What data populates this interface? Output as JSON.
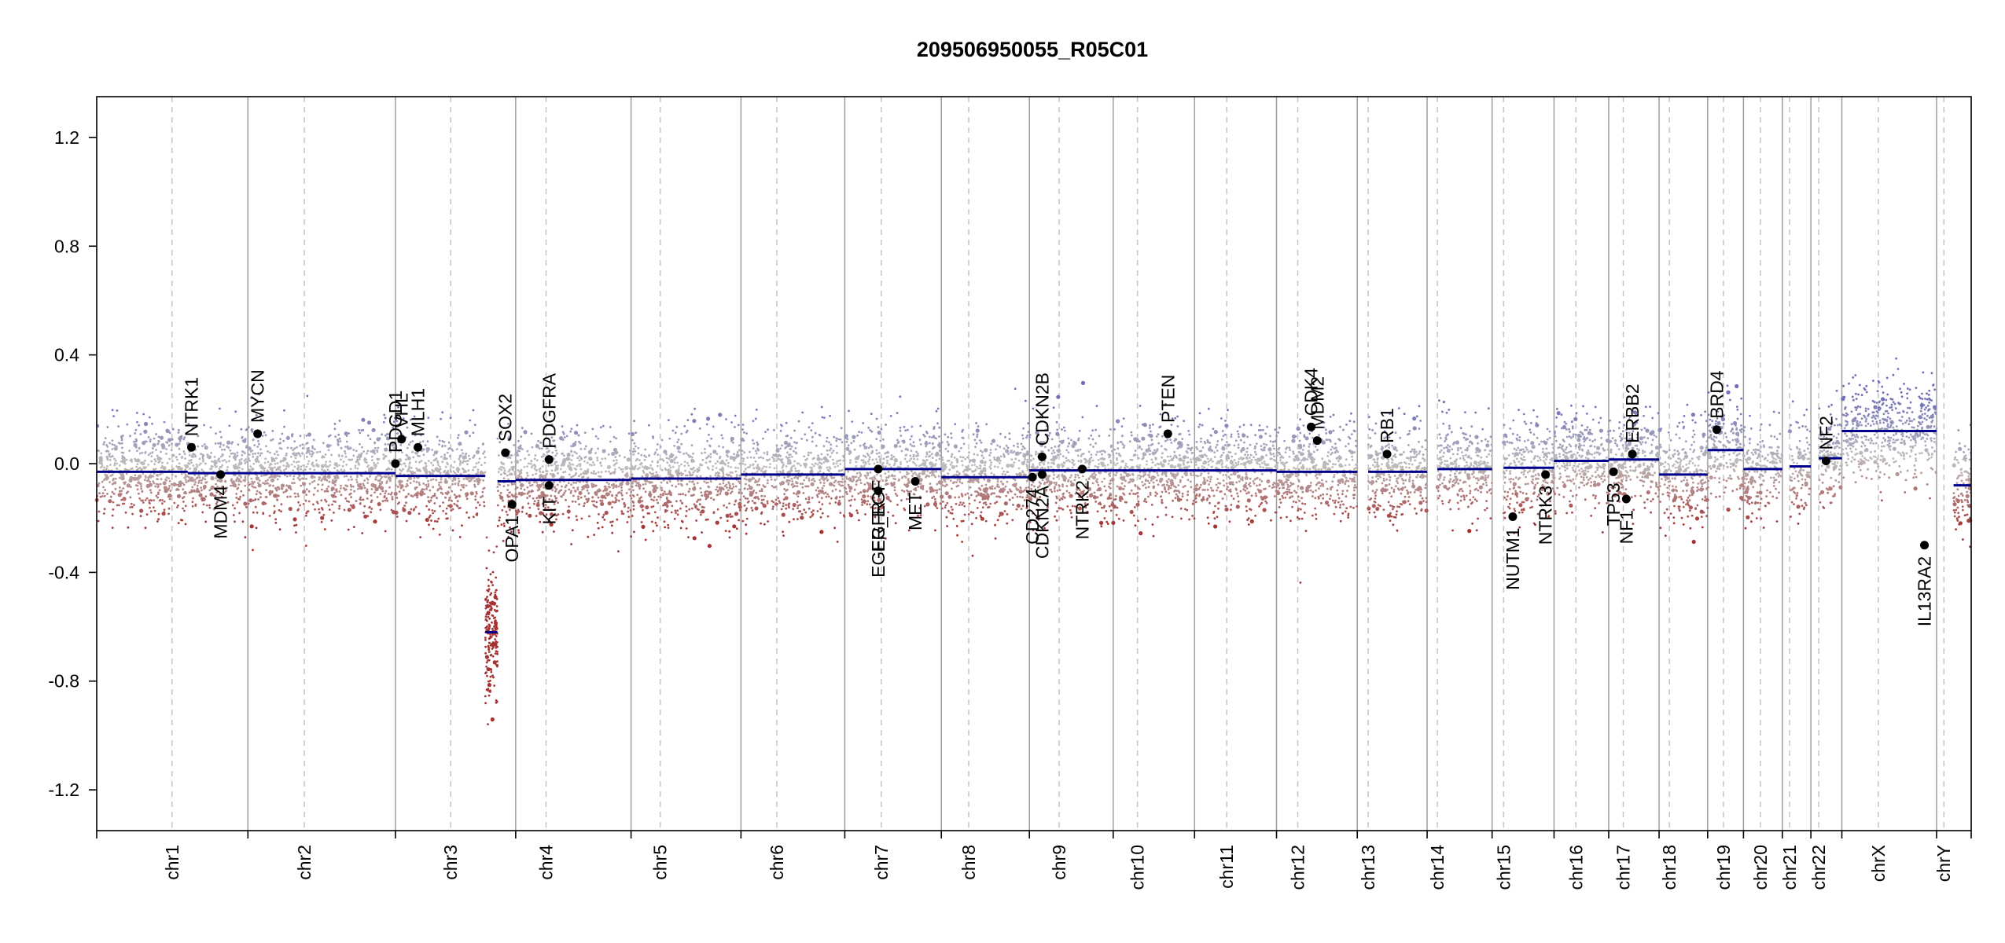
{
  "chart_data": {
    "type": "scatter",
    "title": "209506950055_R05C01",
    "ylim": [
      -1.35,
      1.35
    ],
    "yticks": [
      -1.2,
      -0.8,
      -0.4,
      0.0,
      0.4,
      0.8,
      1.2
    ],
    "ytick_labels": [
      "-1.2",
      "-0.8",
      "-0.4",
      "0.0",
      "0.4",
      "0.8",
      "1.2"
    ],
    "chromosomes": [
      {
        "name": "chr1",
        "start": 0,
        "end": 249,
        "centromere": 124,
        "segments": [
          {
            "from": 0,
            "to": 150,
            "value": -0.03
          },
          {
            "from": 150,
            "to": 249,
            "value": -0.035
          }
        ]
      },
      {
        "name": "chr2",
        "start": 249,
        "end": 492,
        "centromere": 342,
        "segments": [
          {
            "from": 249,
            "to": 492,
            "value": -0.035
          }
        ]
      },
      {
        "name": "chr3",
        "start": 492,
        "end": 690,
        "centromere": 583,
        "segments": [
          {
            "from": 492,
            "to": 640,
            "value": -0.045
          },
          {
            "from": 640,
            "to": 660,
            "value": -0.62
          },
          {
            "from": 660,
            "to": 690,
            "value": -0.065
          }
        ]
      },
      {
        "name": "chr4",
        "start": 690,
        "end": 880,
        "centromere": 740,
        "segments": [
          {
            "from": 690,
            "to": 880,
            "value": -0.06
          }
        ]
      },
      {
        "name": "chr5",
        "start": 880,
        "end": 1061,
        "centromere": 928,
        "segments": [
          {
            "from": 880,
            "to": 1061,
            "value": -0.055
          }
        ]
      },
      {
        "name": "chr6",
        "start": 1061,
        "end": 1232,
        "centromere": 1120,
        "segments": [
          {
            "from": 1061,
            "to": 1232,
            "value": -0.04
          }
        ]
      },
      {
        "name": "chr7",
        "start": 1232,
        "end": 1391,
        "centromere": 1292,
        "segments": [
          {
            "from": 1232,
            "to": 1391,
            "value": -0.02
          }
        ]
      },
      {
        "name": "chr8",
        "start": 1391,
        "end": 1536,
        "centromere": 1436,
        "segments": [
          {
            "from": 1391,
            "to": 1536,
            "value": -0.05
          }
        ]
      },
      {
        "name": "chr9",
        "start": 1536,
        "end": 1674,
        "centromere": 1585,
        "segments": [
          {
            "from": 1536,
            "to": 1674,
            "value": -0.025
          }
        ]
      },
      {
        "name": "chr10",
        "start": 1674,
        "end": 1808,
        "centromere": 1714,
        "segments": [
          {
            "from": 1674,
            "to": 1808,
            "value": -0.025
          }
        ]
      },
      {
        "name": "chr11",
        "start": 1808,
        "end": 1943,
        "centromere": 1861,
        "segments": [
          {
            "from": 1808,
            "to": 1943,
            "value": -0.025
          }
        ]
      },
      {
        "name": "chr12",
        "start": 1943,
        "end": 2076,
        "centromere": 1978,
        "segments": [
          {
            "from": 1943,
            "to": 2076,
            "value": -0.03
          }
        ]
      },
      {
        "name": "chr13",
        "start": 2076,
        "end": 2191,
        "centromere": 2094,
        "segments": [
          {
            "from": 2094,
            "to": 2191,
            "value": -0.03
          }
        ]
      },
      {
        "name": "chr14",
        "start": 2191,
        "end": 2298,
        "centromere": 2208,
        "segments": [
          {
            "from": 2208,
            "to": 2298,
            "value": -0.02
          }
        ]
      },
      {
        "name": "chr15",
        "start": 2298,
        "end": 2400,
        "centromere": 2317,
        "segments": [
          {
            "from": 2317,
            "to": 2400,
            "value": -0.015
          }
        ]
      },
      {
        "name": "chr16",
        "start": 2400,
        "end": 2490,
        "centromere": 2436,
        "segments": [
          {
            "from": 2400,
            "to": 2490,
            "value": 0.01
          }
        ]
      },
      {
        "name": "chr17",
        "start": 2490,
        "end": 2573,
        "centromere": 2514,
        "segments": [
          {
            "from": 2490,
            "to": 2573,
            "value": 0.015
          }
        ]
      },
      {
        "name": "chr18",
        "start": 2573,
        "end": 2653,
        "centromere": 2590,
        "segments": [
          {
            "from": 2573,
            "to": 2653,
            "value": -0.04
          }
        ]
      },
      {
        "name": "chr19",
        "start": 2653,
        "end": 2712,
        "centromere": 2679,
        "segments": [
          {
            "from": 2653,
            "to": 2712,
            "value": 0.05
          }
        ]
      },
      {
        "name": "chr20",
        "start": 2712,
        "end": 2776,
        "centromere": 2740,
        "segments": [
          {
            "from": 2712,
            "to": 2776,
            "value": -0.02
          }
        ]
      },
      {
        "name": "chr21",
        "start": 2776,
        "end": 2823,
        "centromere": 2788,
        "segments": [
          {
            "from": 2788,
            "to": 2823,
            "value": -0.01
          }
        ]
      },
      {
        "name": "chr22",
        "start": 2823,
        "end": 2874,
        "centromere": 2836,
        "segments": [
          {
            "from": 2836,
            "to": 2874,
            "value": 0.02
          }
        ]
      },
      {
        "name": "chrX",
        "start": 2874,
        "end": 3030,
        "centromere": 2934,
        "segments": [
          {
            "from": 2874,
            "to": 3030,
            "value": 0.12
          }
        ]
      },
      {
        "name": "chrY",
        "start": 3030,
        "end": 3087,
        "centromere": 3042,
        "segments": [
          {
            "from": 3058,
            "to": 3087,
            "value": -0.08
          }
        ]
      }
    ],
    "genes": [
      {
        "name": "NTRK1",
        "pos": 156,
        "value": 0.06,
        "label": "above"
      },
      {
        "name": "MDM4",
        "pos": 204,
        "value": -0.04,
        "label": "below"
      },
      {
        "name": "MYCN",
        "pos": 265,
        "value": 0.11,
        "label": "above"
      },
      {
        "name": "PDGD1",
        "pos": 492,
        "value": 0.0,
        "label": "above"
      },
      {
        "name": "VHL",
        "pos": 502,
        "value": 0.09,
        "label": "above"
      },
      {
        "name": "MLH1",
        "pos": 529,
        "value": 0.06,
        "label": "above"
      },
      {
        "name": "SOX2",
        "pos": 673,
        "value": 0.04,
        "label": "above"
      },
      {
        "name": "OPA1",
        "pos": 684,
        "value": -0.15,
        "label": "below"
      },
      {
        "name": "PDGFRA",
        "pos": 745,
        "value": 0.015,
        "label": "above"
      },
      {
        "name": "KIT",
        "pos": 745,
        "value": -0.08,
        "label": "below"
      },
      {
        "name": "EGFR_EGF",
        "pos": 1287,
        "value": -0.02,
        "label": "below"
      },
      {
        "name": "EGFR",
        "pos": 1287,
        "value": -0.1,
        "label": "below"
      },
      {
        "name": "MET",
        "pos": 1348,
        "value": -0.065,
        "label": "below"
      },
      {
        "name": "CD274",
        "pos": 1541,
        "value": -0.05,
        "label": "below"
      },
      {
        "name": "CDKN2A",
        "pos": 1557,
        "value": -0.04,
        "label": "below"
      },
      {
        "name": "CDKN2B",
        "pos": 1557,
        "value": 0.025,
        "label": "above"
      },
      {
        "name": "NTRK2",
        "pos": 1623,
        "value": -0.02,
        "label": "below"
      },
      {
        "name": "PTEN",
        "pos": 1764,
        "value": 0.11,
        "label": "above"
      },
      {
        "name": "CDK4",
        "pos": 2000,
        "value": 0.135,
        "label": "above"
      },
      {
        "name": "MDM2",
        "pos": 2010,
        "value": 0.085,
        "label": "above"
      },
      {
        "name": "RB1",
        "pos": 2125,
        "value": 0.035,
        "label": "above"
      },
      {
        "name": "NUTM1",
        "pos": 2332,
        "value": -0.195,
        "label": "below"
      },
      {
        "name": "NTRK3",
        "pos": 2386,
        "value": -0.04,
        "label": "below"
      },
      {
        "name": "TP53",
        "pos": 2498,
        "value": -0.03,
        "label": "below"
      },
      {
        "name": "NF1",
        "pos": 2519,
        "value": -0.13,
        "label": "below"
      },
      {
        "name": "ERBB2",
        "pos": 2529,
        "value": 0.035,
        "label": "above"
      },
      {
        "name": "BRD4",
        "pos": 2668,
        "value": 0.125,
        "label": "above"
      },
      {
        "name": "NF2",
        "pos": 2848,
        "value": 0.01,
        "label": "above"
      },
      {
        "name": "IL13RA2",
        "pos": 3010,
        "value": -0.3,
        "label": "below"
      }
    ],
    "colors": {
      "segment": "#00008b",
      "gain_points": "#7b7bbd",
      "loss_points": "#a33a3a",
      "neutral_points": "#bdbdbd",
      "gene_points": "#000000",
      "boundary_line": "#9e9e9e",
      "centromere_line": "#c4c4c4"
    },
    "legend": "none"
  }
}
